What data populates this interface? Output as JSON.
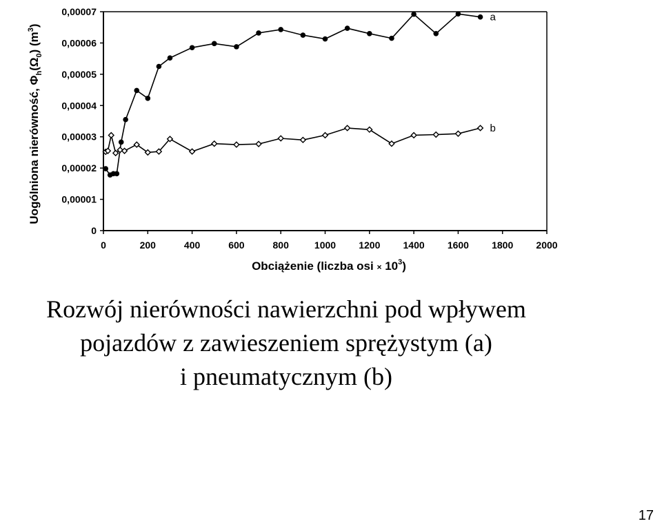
{
  "chart_data": {
    "type": "line",
    "xlabel_main": "Obciążenie (liczba osi",
    "xlabel_mult": "×",
    "xlabel_base": "10",
    "xlabel_exp": "3",
    "xlabel_close": ")",
    "ylabel_main": "Uogólniona nierówność, Φ",
    "ylabel_sub1": "h",
    "ylabel_mid": "(Ω",
    "ylabel_sub2": "0",
    "ylabel_after": ") (m",
    "ylabel_exp": "3",
    "ylabel_close": ")",
    "xlim": [
      0,
      2000
    ],
    "ylim": [
      0,
      7e-05
    ],
    "x_ticks": [
      0,
      200,
      400,
      600,
      800,
      1000,
      1200,
      1400,
      1600,
      1800,
      2000
    ],
    "x_tick_labels": [
      "0",
      "200",
      "400",
      "600",
      "800",
      "1000",
      "1200",
      "1400",
      "1600",
      "1800",
      "2000"
    ],
    "y_ticks": [
      0,
      1e-05,
      2e-05,
      3e-05,
      4e-05,
      5e-05,
      6e-05,
      7e-05
    ],
    "y_tick_labels": [
      "0",
      "0,00001",
      "0,00002",
      "0,00003",
      "0,00004",
      "0,00005",
      "0,00006",
      "0,00007"
    ],
    "grid": false,
    "series": [
      {
        "name": "a",
        "marker": "filled-circle",
        "x": [
          10,
          30,
          45,
          60,
          80,
          100,
          150,
          200,
          250,
          300,
          400,
          500,
          600,
          700,
          800,
          900,
          1000,
          1100,
          1200,
          1300,
          1400,
          1500,
          1600,
          1700
        ],
        "y": [
          1.98e-05,
          1.78e-05,
          1.82e-05,
          1.82e-05,
          2.83e-05,
          3.55e-05,
          4.48e-05,
          4.23e-05,
          5.25e-05,
          5.52e-05,
          5.85e-05,
          5.98e-05,
          5.88e-05,
          6.32e-05,
          6.43e-05,
          6.25e-05,
          6.13e-05,
          6.47e-05,
          6.3e-05,
          6.15e-05,
          6.92e-05,
          6.3e-05,
          6.93e-05,
          6.83e-05
        ]
      },
      {
        "name": "b",
        "marker": "open-diamond",
        "x": [
          10,
          20,
          35,
          55,
          75,
          95,
          150,
          200,
          250,
          300,
          400,
          500,
          600,
          700,
          800,
          900,
          1000,
          1100,
          1200,
          1300,
          1400,
          1500,
          1600,
          1700
        ],
        "y": [
          2.52e-05,
          2.55e-05,
          3.05e-05,
          2.48e-05,
          2.58e-05,
          2.55e-05,
          2.75e-05,
          2.5e-05,
          2.53e-05,
          2.93e-05,
          2.53e-05,
          2.78e-05,
          2.75e-05,
          2.77e-05,
          2.95e-05,
          2.9e-05,
          3.05e-05,
          3.28e-05,
          3.23e-05,
          2.78e-05,
          3.05e-05,
          3.07e-05,
          3.1e-05,
          3.28e-05
        ]
      }
    ]
  },
  "caption": {
    "line1": "Rozwój nierówności nawierzchni pod wpływem",
    "line2": "pojazdów z zawieszeniem sprężystym (a)",
    "line3": "i pneumatycznym (b)"
  },
  "page_number": "17"
}
